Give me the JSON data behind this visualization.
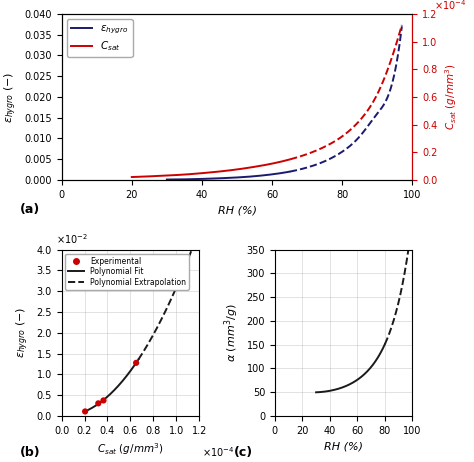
{
  "panel_a": {
    "RH_eps": [
      30,
      35,
      40,
      45,
      50,
      55,
      60,
      65,
      70,
      75,
      80,
      85,
      90,
      95,
      97
    ],
    "eps_vals": [
      0.0001,
      0.00015,
      0.00025,
      0.0004,
      0.0006,
      0.0009,
      0.00135,
      0.002,
      0.003,
      0.0045,
      0.0068,
      0.0105,
      0.016,
      0.026,
      0.037
    ],
    "RH_Csat": [
      20,
      25,
      30,
      35,
      40,
      45,
      50,
      55,
      60,
      65,
      70,
      75,
      80,
      85,
      90,
      95,
      97
    ],
    "Csat_vals": [
      2.1e-05,
      2.6e-05,
      3.2e-05,
      3.9e-05,
      4.9e-05,
      6.1e-05,
      7.6e-05,
      9.5e-05,
      0.000118,
      0.000148,
      0.000187,
      0.00024,
      0.000315,
      0.00043,
      0.00062,
      0.00095,
      0.00112
    ],
    "eps_split_idx": 7,
    "Csat_split_idx": 9,
    "eps_color": "#1a1a6e",
    "Csat_color": "#cc0000",
    "xlabel": "RH (%)",
    "ylabel_left": "$\\varepsilon_{hygro}$ (−)",
    "ylabel_right": "$C_{sat}$ $(g/mm^3)$",
    "legend_eps": "$\\varepsilon_{hygro}$",
    "legend_Csat": "$C_{sat}$",
    "xlim": [
      0,
      100
    ],
    "ylim_left": [
      0,
      0.04
    ],
    "ylim_right": [
      0.0,
      0.0012
    ],
    "yticks_left": [
      0.0,
      0.005,
      0.01,
      0.015,
      0.02,
      0.025,
      0.03,
      0.035,
      0.04
    ],
    "yticks_right_vals": [
      0,
      0.0002,
      0.0004,
      0.0006,
      0.0008,
      0.001,
      0.0012
    ],
    "yticks_right_labels": [
      "0.0",
      "0.2",
      "0.4",
      "0.6",
      "0.8",
      "1.0",
      "1.2"
    ],
    "xticks": [
      0,
      20,
      40,
      60,
      80,
      100
    ],
    "label_a": "(a)"
  },
  "panel_b": {
    "exp_Csat": [
      2.05e-05,
      3.2e-05,
      3.65e-05,
      6.5e-05
    ],
    "exp_eps": [
      0.00105,
      0.003,
      0.0037,
      0.01275
    ],
    "fit_x_start": 2.05e-05,
    "fit_x_end": 6.7e-05,
    "extrap_x_start": 6.7e-05,
    "extrap_x_end": 0.000115,
    "poly_degree": 2,
    "exp_color": "#cc0000",
    "fit_color": "#1a1a1a",
    "xlabel": "$C_{sat}$ $(g/mm^3)$",
    "ylabel": "$\\varepsilon_{hygro}$ (−)",
    "xlim": [
      0.0,
      0.00012
    ],
    "ylim": [
      0.0,
      0.04
    ],
    "xticks_vals": [
      0,
      2e-05,
      4e-05,
      6e-05,
      8e-05,
      0.0001,
      0.00012
    ],
    "xticks_labels": [
      "0.0",
      "0.2",
      "0.4",
      "0.6",
      "0.8",
      "1.0",
      "1.2"
    ],
    "yticks_vals": [
      0,
      0.005,
      0.01,
      0.015,
      0.02,
      0.025,
      0.03,
      0.035,
      0.04
    ],
    "yticks_labels": [
      "0.0",
      "0.5",
      "1.0",
      "1.5",
      "2.0",
      "2.5",
      "3.0",
      "3.5",
      "4.0"
    ],
    "label_b": "(b)"
  },
  "panel_c": {
    "RH_data": [
      30,
      35,
      40,
      45,
      50,
      55,
      60,
      65,
      70,
      75,
      80,
      85,
      90,
      95,
      97
    ],
    "alpha_data": [
      50,
      51,
      53,
      56,
      60,
      66,
      74,
      86,
      102,
      124,
      155,
      198,
      252,
      310,
      325
    ],
    "solid_end_idx": 10,
    "alpha_color": "#1a1a1a",
    "xlabel": "RH (%)",
    "ylabel": "$\\alpha$ $(mm^3/g)$",
    "xlim": [
      0,
      100
    ],
    "ylim": [
      0,
      350
    ],
    "xticks": [
      0,
      20,
      40,
      60,
      80,
      100
    ],
    "yticks": [
      0,
      50,
      100,
      150,
      200,
      250,
      300,
      350
    ],
    "label_c": "(c)"
  }
}
